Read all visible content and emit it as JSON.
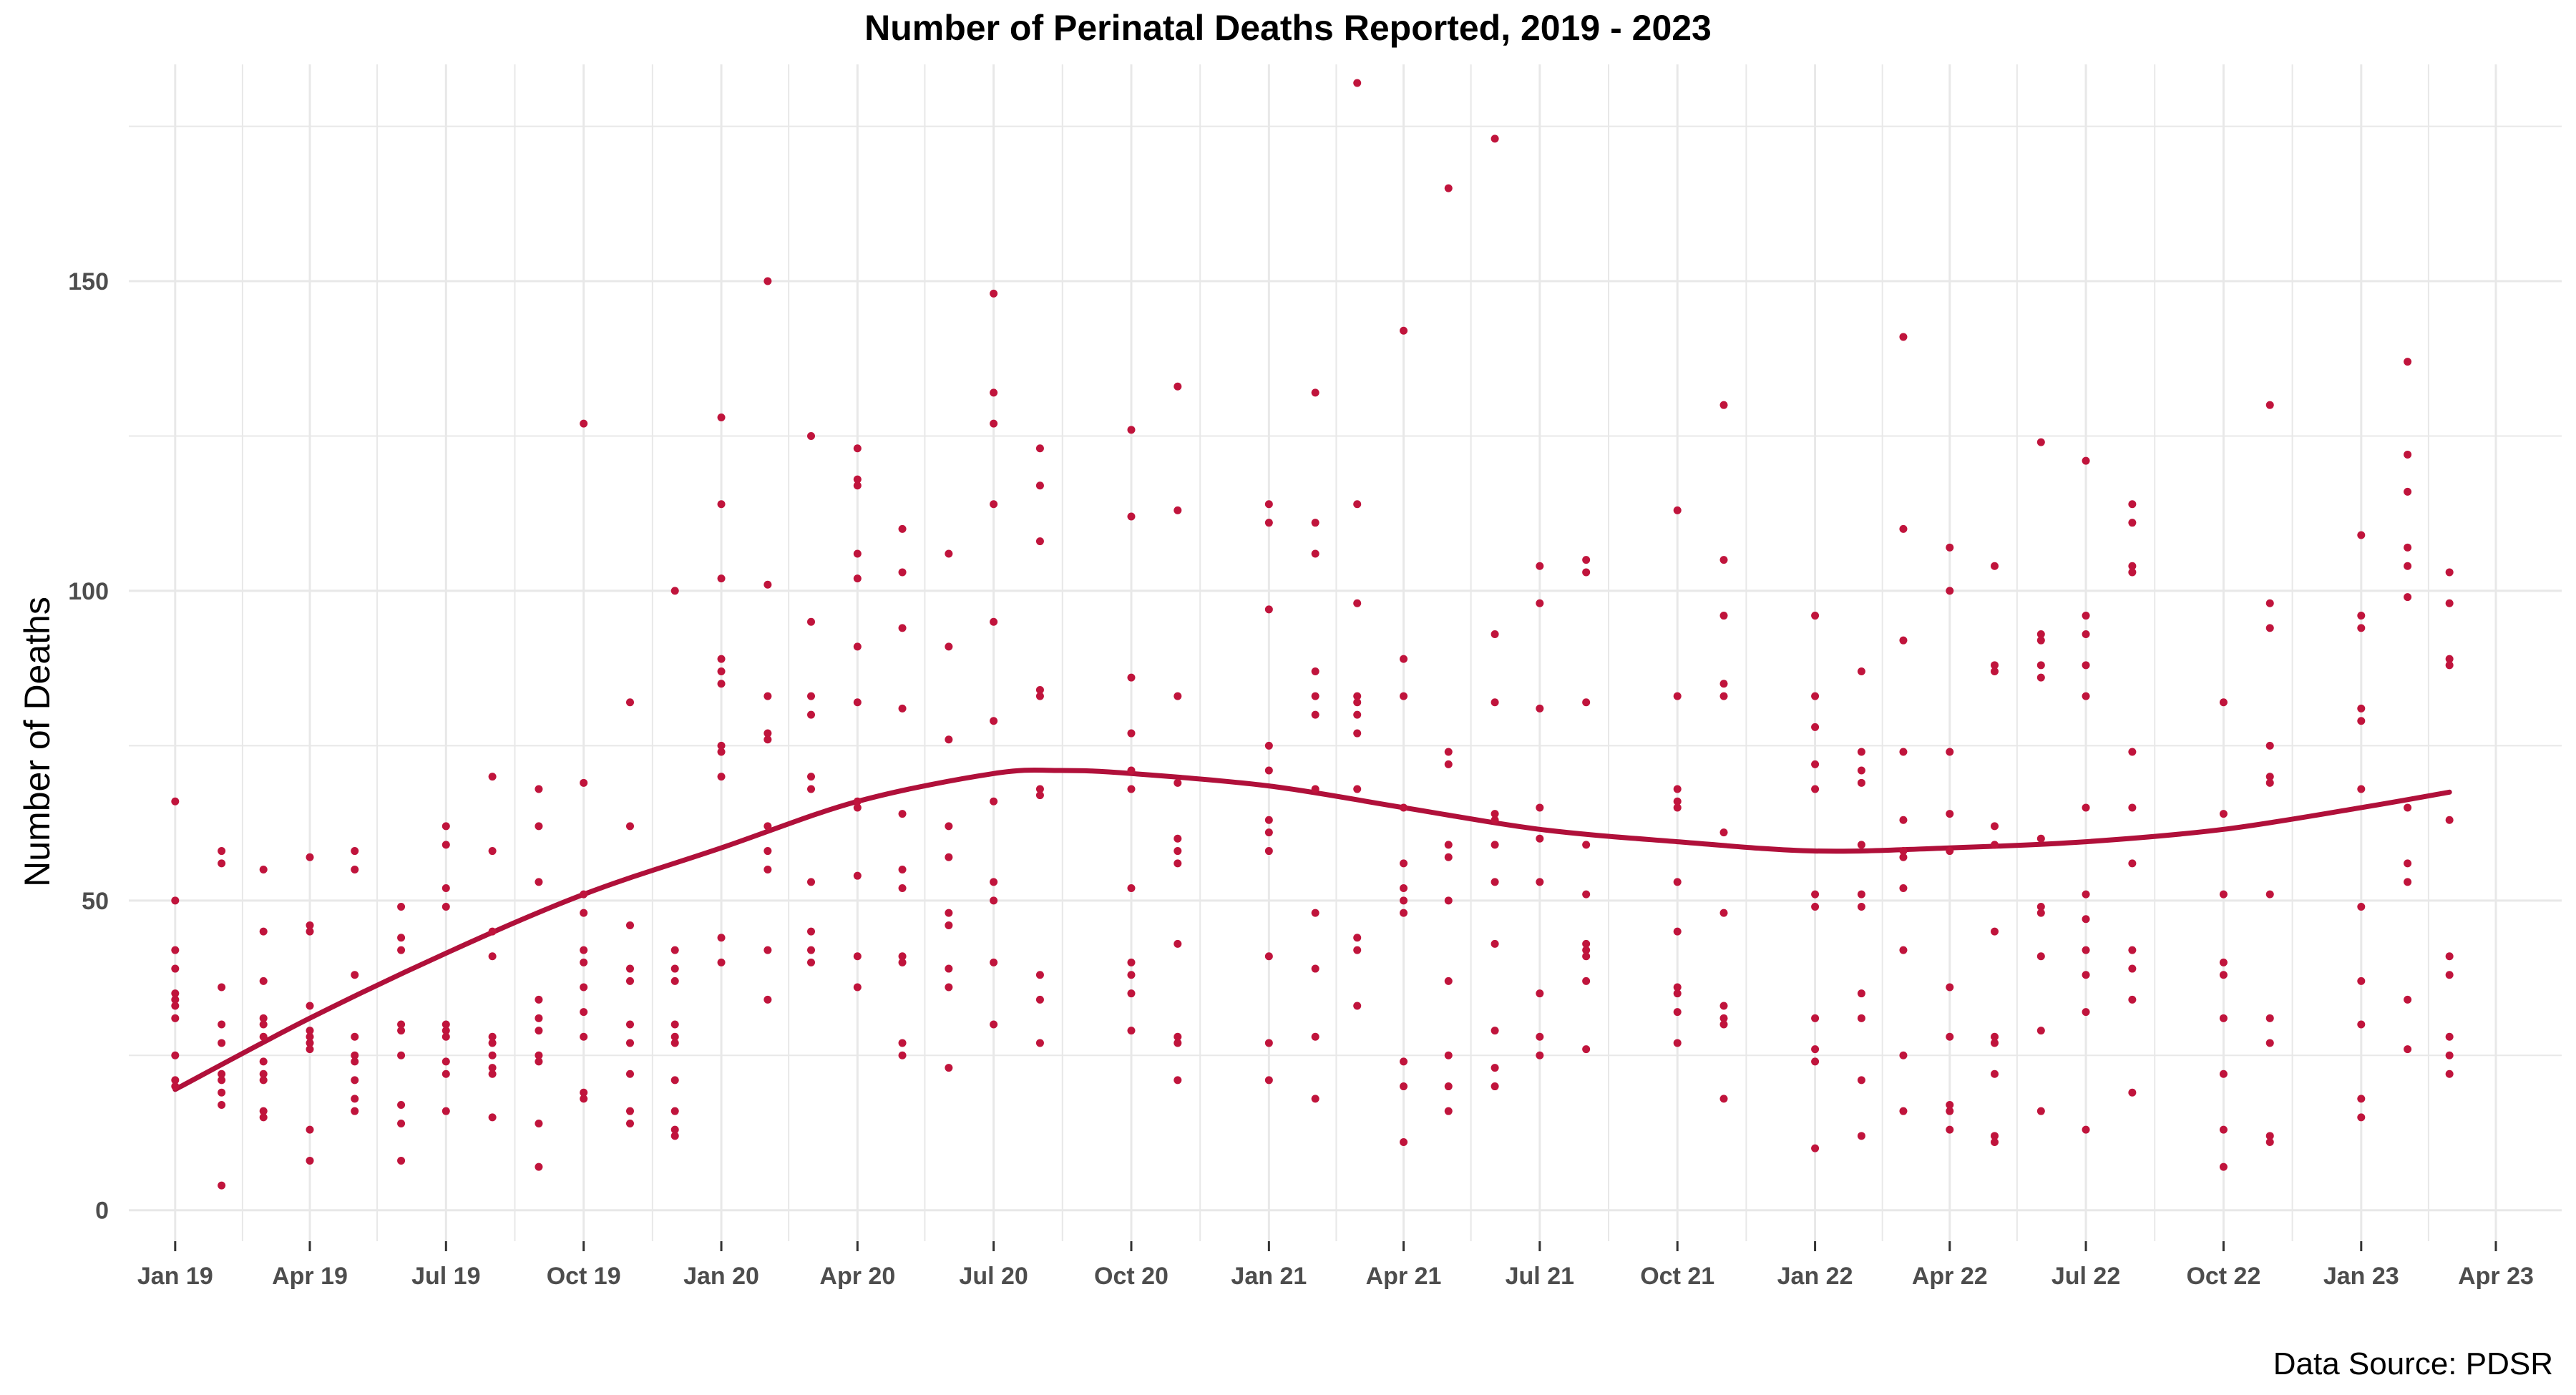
{
  "chart_data": {
    "type": "scatter",
    "title": "Number of Perinatal Deaths Reported, 2019 - 2023",
    "xlabel": "",
    "ylabel": "Number of Deaths",
    "caption": "Data Source: PDSR",
    "xlim": [
      "2018-12-01",
      "2023-05-15"
    ],
    "ylim": [
      -5,
      185
    ],
    "yticks": [
      0,
      50,
      100,
      150
    ],
    "xticks": [
      {
        "date": "2019-01-01",
        "label": "Jan 19"
      },
      {
        "date": "2019-04-01",
        "label": "Apr 19"
      },
      {
        "date": "2019-07-01",
        "label": "Jul 19"
      },
      {
        "date": "2019-10-01",
        "label": "Oct 19"
      },
      {
        "date": "2020-01-01",
        "label": "Jan 20"
      },
      {
        "date": "2020-04-01",
        "label": "Apr 20"
      },
      {
        "date": "2020-07-01",
        "label": "Jul 20"
      },
      {
        "date": "2020-10-01",
        "label": "Oct 20"
      },
      {
        "date": "2021-01-01",
        "label": "Jan 21"
      },
      {
        "date": "2021-04-01",
        "label": "Apr 21"
      },
      {
        "date": "2021-07-01",
        "label": "Jul 21"
      },
      {
        "date": "2021-10-01",
        "label": "Oct 21"
      },
      {
        "date": "2022-01-01",
        "label": "Jan 22"
      },
      {
        "date": "2022-04-01",
        "label": "Apr 22"
      },
      {
        "date": "2022-07-01",
        "label": "Jul 22"
      },
      {
        "date": "2022-10-01",
        "label": "Oct 22"
      },
      {
        "date": "2023-01-01",
        "label": "Jan 23"
      },
      {
        "date": "2023-04-01",
        "label": "Apr 23"
      }
    ],
    "grid": true,
    "colors": {
      "points": "#c0143c",
      "trend": "#b0103a",
      "grid": "#e8e8e8"
    },
    "points": [
      {
        "x": "2019-01-01",
        "y": [
          66,
          50,
          42,
          39,
          35,
          34,
          33,
          31,
          25,
          21,
          20
        ]
      },
      {
        "x": "2019-02-01",
        "y": [
          58,
          56,
          36,
          30,
          27,
          22,
          21,
          19,
          17,
          4
        ]
      },
      {
        "x": "2019-03-01",
        "y": [
          55,
          45,
          37,
          31,
          30,
          28,
          24,
          22,
          21,
          16,
          15
        ]
      },
      {
        "x": "2019-04-01",
        "y": [
          57,
          46,
          45,
          33,
          29,
          28,
          27,
          26,
          13,
          8
        ]
      },
      {
        "x": "2019-05-01",
        "y": [
          58,
          55,
          38,
          28,
          25,
          24,
          21,
          18,
          16
        ]
      },
      {
        "x": "2019-06-01",
        "y": [
          49,
          44,
          42,
          30,
          29,
          25,
          17,
          14,
          8
        ]
      },
      {
        "x": "2019-07-01",
        "y": [
          62,
          59,
          52,
          49,
          30,
          29,
          28,
          24,
          22,
          16
        ]
      },
      {
        "x": "2019-08-01",
        "y": [
          70,
          58,
          45,
          41,
          28,
          27,
          25,
          23,
          22,
          15
        ]
      },
      {
        "x": "2019-09-01",
        "y": [
          68,
          62,
          53,
          34,
          31,
          29,
          25,
          24,
          14,
          7
        ]
      },
      {
        "x": "2019-10-01",
        "y": [
          127,
          69,
          51,
          48,
          42,
          40,
          36,
          32,
          28,
          19,
          18
        ]
      },
      {
        "x": "2019-11-01",
        "y": [
          82,
          62,
          46,
          39,
          37,
          30,
          27,
          22,
          16,
          14
        ]
      },
      {
        "x": "2019-12-01",
        "y": [
          100,
          42,
          39,
          37,
          30,
          28,
          27,
          21,
          16,
          13,
          12
        ]
      },
      {
        "x": "2020-01-01",
        "y": [
          128,
          114,
          102,
          89,
          87,
          85,
          75,
          74,
          70,
          44,
          40
        ]
      },
      {
        "x": "2020-02-01",
        "y": [
          150,
          101,
          83,
          77,
          76,
          62,
          58,
          55,
          42,
          34
        ]
      },
      {
        "x": "2020-03-01",
        "y": [
          125,
          95,
          83,
          80,
          70,
          68,
          53,
          45,
          42,
          40
        ]
      },
      {
        "x": "2020-04-01",
        "y": [
          123,
          118,
          117,
          106,
          102,
          91,
          82,
          66,
          65,
          54,
          41,
          36
        ]
      },
      {
        "x": "2020-05-01",
        "y": [
          110,
          103,
          94,
          81,
          64,
          55,
          52,
          41,
          40,
          27,
          25
        ]
      },
      {
        "x": "2020-06-01",
        "y": [
          106,
          91,
          76,
          62,
          57,
          48,
          46,
          39,
          36,
          23
        ]
      },
      {
        "x": "2020-07-01",
        "y": [
          148,
          132,
          127,
          114,
          95,
          79,
          66,
          53,
          50,
          40,
          30
        ]
      },
      {
        "x": "2020-08-01",
        "y": [
          123,
          117,
          108,
          84,
          83,
          68,
          67,
          38,
          34,
          27
        ]
      },
      {
        "x": "2020-10-01",
        "y": [
          126,
          112,
          86,
          77,
          71,
          68,
          52,
          40,
          38,
          35,
          29
        ]
      },
      {
        "x": "2020-11-01",
        "y": [
          133,
          113,
          83,
          69,
          60,
          58,
          56,
          43,
          28,
          27,
          21
        ]
      },
      {
        "x": "2021-01-01",
        "y": [
          114,
          111,
          97,
          75,
          71,
          63,
          61,
          58,
          41,
          27,
          21
        ]
      },
      {
        "x": "2021-02-01",
        "y": [
          132,
          111,
          106,
          87,
          83,
          80,
          68,
          48,
          39,
          28,
          18
        ]
      },
      {
        "x": "2021-03-01",
        "y": [
          182,
          114,
          98,
          83,
          82,
          80,
          77,
          68,
          44,
          42,
          33
        ]
      },
      {
        "x": "2021-04-01",
        "y": [
          142,
          89,
          83,
          65,
          56,
          52,
          50,
          48,
          24,
          20,
          11
        ]
      },
      {
        "x": "2021-05-01",
        "y": [
          165,
          74,
          72,
          59,
          57,
          50,
          37,
          25,
          20,
          16
        ]
      },
      {
        "x": "2021-06-01",
        "y": [
          173,
          93,
          82,
          64,
          63,
          59,
          53,
          43,
          29,
          23,
          20
        ]
      },
      {
        "x": "2021-07-01",
        "y": [
          104,
          98,
          81,
          65,
          60,
          53,
          35,
          28,
          25
        ]
      },
      {
        "x": "2021-08-01",
        "y": [
          105,
          103,
          82,
          59,
          51,
          43,
          42,
          41,
          37,
          26
        ]
      },
      {
        "x": "2021-10-01",
        "y": [
          113,
          83,
          68,
          66,
          65,
          53,
          45,
          36,
          35,
          32,
          27
        ]
      },
      {
        "x": "2021-11-01",
        "y": [
          130,
          105,
          96,
          85,
          83,
          61,
          48,
          33,
          31,
          30,
          18
        ]
      },
      {
        "x": "2022-01-01",
        "y": [
          96,
          83,
          78,
          72,
          68,
          51,
          49,
          31,
          26,
          24,
          10
        ]
      },
      {
        "x": "2022-02-01",
        "y": [
          87,
          74,
          71,
          69,
          59,
          51,
          49,
          35,
          31,
          21,
          12
        ]
      },
      {
        "x": "2022-03-01",
        "y": [
          141,
          110,
          92,
          74,
          63,
          58,
          57,
          52,
          42,
          25,
          16
        ]
      },
      {
        "x": "2022-04-01",
        "y": [
          107,
          100,
          74,
          64,
          58,
          36,
          28,
          17,
          16,
          13
        ]
      },
      {
        "x": "2022-05-01",
        "y": [
          104,
          88,
          87,
          62,
          59,
          45,
          28,
          27,
          22,
          12,
          11
        ]
      },
      {
        "x": "2022-06-01",
        "y": [
          124,
          93,
          92,
          88,
          86,
          60,
          49,
          48,
          41,
          29,
          16
        ]
      },
      {
        "x": "2022-07-01",
        "y": [
          121,
          96,
          93,
          88,
          83,
          65,
          51,
          47,
          42,
          38,
          32,
          13
        ]
      },
      {
        "x": "2022-08-01",
        "y": [
          114,
          111,
          104,
          103,
          74,
          65,
          56,
          42,
          39,
          34,
          19
        ]
      },
      {
        "x": "2022-10-01",
        "y": [
          82,
          64,
          51,
          40,
          38,
          31,
          22,
          13,
          7
        ]
      },
      {
        "x": "2022-11-01",
        "y": [
          130,
          98,
          94,
          75,
          70,
          69,
          51,
          31,
          27,
          12,
          11
        ]
      },
      {
        "x": "2023-01-01",
        "y": [
          109,
          96,
          94,
          81,
          79,
          68,
          49,
          37,
          30,
          18,
          15
        ]
      },
      {
        "x": "2023-02-01",
        "y": [
          137,
          122,
          116,
          107,
          104,
          99,
          65,
          56,
          53,
          34,
          26
        ]
      },
      {
        "x": "2023-03-01",
        "y": [
          103,
          98,
          89,
          88,
          63,
          41,
          38,
          28,
          25,
          22
        ]
      }
    ],
    "trend": {
      "x": [
        "2019-01-01",
        "2019-04-01",
        "2019-07-01",
        "2019-10-01",
        "2020-01-01",
        "2020-04-01",
        "2020-07-01",
        "2020-08-15",
        "2020-10-01",
        "2021-01-01",
        "2021-04-01",
        "2021-07-01",
        "2021-10-01",
        "2022-01-01",
        "2022-04-01",
        "2022-07-01",
        "2022-10-01",
        "2023-01-01",
        "2023-03-01"
      ],
      "y": [
        19.5,
        31,
        41.5,
        51,
        58.5,
        66,
        70.5,
        71,
        70.5,
        68.5,
        65,
        61.5,
        59.5,
        58,
        58.5,
        59.5,
        61.5,
        65,
        67.5
      ]
    }
  }
}
